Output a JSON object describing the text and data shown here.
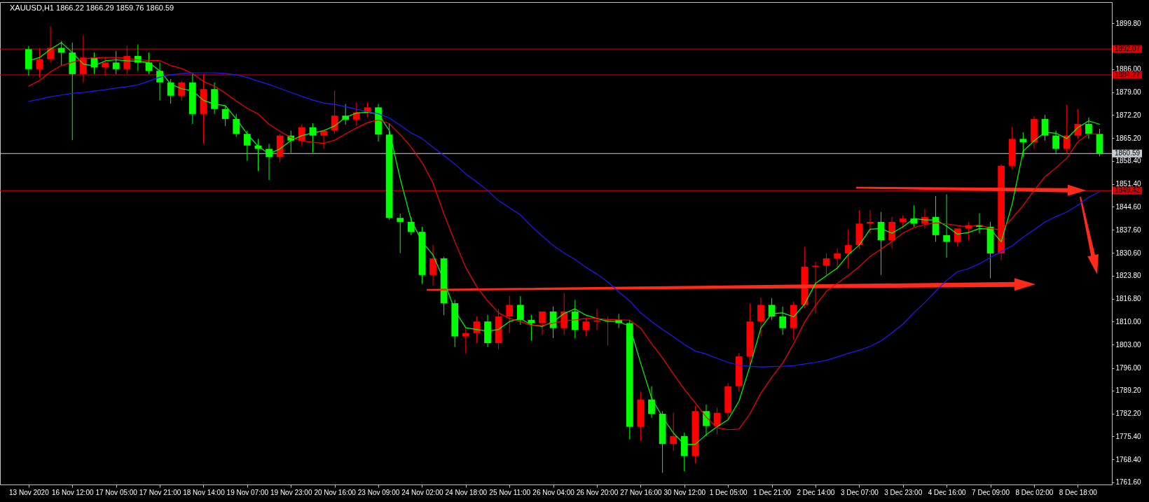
{
  "chart_data": {
    "type": "candlestick",
    "title": "XAUUSD,H1 1866.22 1866.29 1859.76 1860.59",
    "categories": [
      "13 Nov 2020",
      null,
      null,
      null,
      "16 Nov 12:00",
      null,
      null,
      null,
      "17 Nov 05:00",
      null,
      null,
      null,
      "17 Nov 21:00",
      null,
      null,
      null,
      "18 Nov 14:00",
      null,
      null,
      null,
      "19 Nov 07:00",
      null,
      null,
      null,
      "19 Nov 23:00",
      null,
      null,
      null,
      "20 Nov 16:00",
      null,
      null,
      null,
      "23 Nov 09:00",
      null,
      null,
      null,
      "24 Nov 02:00",
      null,
      null,
      null,
      "24 Nov 18:00",
      null,
      null,
      null,
      "25 Nov 11:00",
      null,
      null,
      null,
      "26 Nov 04:00",
      null,
      null,
      null,
      "26 Nov 20:00",
      null,
      null,
      null,
      "27 Nov 16:00",
      null,
      null,
      null,
      "30 Nov 12:00",
      null,
      null,
      null,
      "1 Dec 05:00",
      null,
      null,
      null,
      "1 Dec 21:00",
      null,
      null,
      null,
      "2 Dec 14:00",
      null,
      null,
      null,
      "3 Dec 07:00",
      null,
      null,
      null,
      "3 Dec 23:00",
      null,
      null,
      null,
      "4 Dec 16:00",
      null,
      null,
      null,
      "7 Dec 09:00",
      null,
      null,
      null,
      "8 Dec 02:00",
      null,
      null,
      null,
      "8 Dec 18:00",
      null,
      null
    ],
    "ohlc": [
      [
        1892,
        1893,
        1884,
        1886
      ],
      [
        1886,
        1892.4,
        1883.5,
        1889
      ],
      [
        1889,
        1898.8,
        1888,
        1892.4
      ],
      [
        1892.4,
        1894.5,
        1887,
        1891
      ],
      [
        1891,
        1894,
        1864.6,
        1884.5
      ],
      [
        1884.5,
        1896.2,
        1882,
        1889.5
      ],
      [
        1889.5,
        1891,
        1884.5,
        1886.5
      ],
      [
        1886.5,
        1889.5,
        1884,
        1888
      ],
      [
        1888,
        1891.5,
        1884.5,
        1886
      ],
      [
        1886,
        1893,
        1884.5,
        1890
      ],
      [
        1890,
        1893.5,
        1885.5,
        1888
      ],
      [
        1888,
        1891,
        1884.5,
        1885.5
      ],
      [
        1885.5,
        1888,
        1876.6,
        1882
      ],
      [
        1882,
        1883,
        1875.6,
        1878
      ],
      [
        1878,
        1882.5,
        1876.5,
        1882
      ],
      [
        1882,
        1884.5,
        1869.5,
        1872.5
      ],
      [
        1872.5,
        1884.5,
        1863.6,
        1880
      ],
      [
        1880,
        1882,
        1872.5,
        1874
      ],
      [
        1874,
        1875,
        1868.9,
        1871
      ],
      [
        1871,
        1872.5,
        1865.6,
        1866.5
      ],
      [
        1866.5,
        1867.5,
        1858.4,
        1863
      ],
      [
        1863,
        1865,
        1855.3,
        1862
      ],
      [
        1862,
        1863.5,
        1852.6,
        1859.5
      ],
      [
        1859.5,
        1866.5,
        1858,
        1866
      ],
      [
        1866,
        1867.5,
        1860.8,
        1864.5
      ],
      [
        1864.5,
        1869.4,
        1862.8,
        1868.5
      ],
      [
        1868.5,
        1869.7,
        1860.8,
        1866
      ],
      [
        1866,
        1867.5,
        1862,
        1867.5
      ],
      [
        1867.5,
        1879.5,
        1866.5,
        1872
      ],
      [
        1872,
        1875.5,
        1869.3,
        1870.8
      ],
      [
        1870.8,
        1876,
        1869,
        1873
      ],
      [
        1873,
        1876,
        1871.5,
        1874.5
      ],
      [
        1874.5,
        1875.5,
        1864.2,
        1866.3
      ],
      [
        1866.3,
        1869.5,
        1840.6,
        1841.2
      ],
      [
        1841.2,
        1842.5,
        1830.6,
        1840
      ],
      [
        1840,
        1841.5,
        1836,
        1837
      ],
      [
        1837,
        1838.5,
        1821.3,
        1824
      ],
      [
        1824,
        1833,
        1820.8,
        1829
      ],
      [
        1829,
        1829.5,
        1811.9,
        1815.5
      ],
      [
        1815.5,
        1816.5,
        1802.3,
        1805.5
      ],
      [
        1805.5,
        1808,
        1800.4,
        1806.5
      ],
      [
        1806.5,
        1811.5,
        1803.5,
        1810
      ],
      [
        1810,
        1812,
        1802.3,
        1803.5
      ],
      [
        1803.5,
        1813.8,
        1801.5,
        1811.5
      ],
      [
        1811.5,
        1817.7,
        1806.5,
        1815
      ],
      [
        1815,
        1817.6,
        1809,
        1810.5
      ],
      [
        1810.5,
        1812,
        1804.2,
        1809.5
      ],
      [
        1809.5,
        1813,
        1806,
        1813
      ],
      [
        1813,
        1814.5,
        1805,
        1808
      ],
      [
        1808,
        1818.5,
        1806,
        1813
      ],
      [
        1813,
        1816.5,
        1805,
        1807.5
      ],
      [
        1807.5,
        1811,
        1805.5,
        1810
      ],
      [
        1810,
        1813.8,
        1807.5,
        1810.3
      ],
      [
        1810.3,
        1811.5,
        1802.8,
        1810.5
      ],
      [
        1810.5,
        1812.3,
        1808,
        1809.5
      ],
      [
        1809.5,
        1810.5,
        1774.5,
        1778.3
      ],
      [
        1778.3,
        1788.9,
        1774,
        1786.5
      ],
      [
        1786.5,
        1790.5,
        1781,
        1782.2
      ],
      [
        1782.2,
        1783,
        1764.4,
        1773.1
      ],
      [
        1773.1,
        1782.5,
        1771,
        1775.5
      ],
      [
        1775.5,
        1776.5,
        1764.9,
        1769.5
      ],
      [
        1769.5,
        1784.6,
        1767.2,
        1783
      ],
      [
        1783,
        1785,
        1775.5,
        1778.5
      ],
      [
        1778.5,
        1784,
        1776,
        1782.5
      ],
      [
        1782.5,
        1791.5,
        1780.5,
        1790.5
      ],
      [
        1790.5,
        1800.5,
        1789,
        1799.5
      ],
      [
        1799.5,
        1815.5,
        1797,
        1810
      ],
      [
        1810,
        1817.2,
        1805.5,
        1815
      ],
      [
        1815,
        1817,
        1810.5,
        1811.5
      ],
      [
        1811.5,
        1814.5,
        1806,
        1808
      ],
      [
        1808,
        1816,
        1804.5,
        1815
      ],
      [
        1815,
        1832.5,
        1814,
        1826.5
      ],
      [
        1826.5,
        1828,
        1812.4,
        1826.8
      ],
      [
        1826.8,
        1830.5,
        1824,
        1829
      ],
      [
        1829,
        1832,
        1825.5,
        1830.5
      ],
      [
        1830.5,
        1837.8,
        1826,
        1833
      ],
      [
        1833,
        1843.5,
        1832,
        1839.5
      ],
      [
        1839.5,
        1843.5,
        1836.5,
        1840
      ],
      [
        1840,
        1843,
        1824,
        1834.5
      ],
      [
        1834.5,
        1841.5,
        1832,
        1840
      ],
      [
        1840,
        1842,
        1838,
        1841
      ],
      [
        1841,
        1845,
        1838.5,
        1839.5
      ],
      [
        1839.5,
        1844,
        1838,
        1841.5
      ],
      [
        1841.5,
        1847.8,
        1834,
        1836
      ],
      [
        1836,
        1848.3,
        1829.2,
        1834
      ],
      [
        1834,
        1838,
        1832.5,
        1838
      ],
      [
        1838,
        1840,
        1834.5,
        1839
      ],
      [
        1839,
        1842.6,
        1836.5,
        1838.5
      ],
      [
        1838.5,
        1840,
        1823,
        1830.5
      ],
      [
        1830.5,
        1857.4,
        1828.5,
        1856.9
      ],
      [
        1856.9,
        1868.6,
        1856,
        1865
      ],
      [
        1865,
        1867,
        1859.5,
        1864
      ],
      [
        1864,
        1871.8,
        1862,
        1871
      ],
      [
        1871,
        1872.2,
        1864.5,
        1866
      ],
      [
        1866,
        1867.5,
        1860.5,
        1862
      ],
      [
        1862,
        1875.2,
        1860.5,
        1866
      ],
      [
        1866,
        1874,
        1865,
        1869.5
      ],
      [
        1869.5,
        1871.5,
        1865,
        1866.5
      ],
      [
        1866.5,
        1868,
        1859.76,
        1860.59
      ]
    ],
    "colors": [
      "#00ff00",
      "#ff0000",
      "#ff0000",
      "#00ff00",
      "#00ff00",
      "#ff0000",
      "#00ff00",
      "#ff0000",
      "#00ff00",
      "#ff0000",
      "#00ff00",
      "#00ff00",
      "#00ff00",
      "#00ff00",
      "#ff0000",
      "#00ff00",
      "#ff0000",
      "#00ff00",
      "#00ff00",
      "#00ff00",
      "#00ff00",
      "#00ff00",
      "#00ff00",
      "#ff0000",
      "#00ff00",
      "#ff0000",
      "#00ff00",
      "#ff0000",
      "#ff0000",
      "#00ff00",
      "#ff0000",
      "#ff0000",
      "#00ff00",
      "#00ff00",
      "#00ff00",
      "#00ff00",
      "#00ff00",
      "#ff0000",
      "#00ff00",
      "#00ff00",
      "#ff0000",
      "#ff0000",
      "#00ff00",
      "#ff0000",
      "#ff0000",
      "#00ff00",
      "#00ff00",
      "#ff0000",
      "#00ff00",
      "#ff0000",
      "#00ff00",
      "#ff0000",
      "#ff0000",
      "#ff0000",
      "#00ff00",
      "#00ff00",
      "#ff0000",
      "#00ff00",
      "#00ff00",
      "#ff0000",
      "#00ff00",
      "#ff0000",
      "#00ff00",
      "#ff0000",
      "#ff0000",
      "#ff0000",
      "#ff0000",
      "#ff0000",
      "#00ff00",
      "#00ff00",
      "#ff0000",
      "#ff0000",
      "#ff0000",
      "#ff0000",
      "#ff0000",
      "#ff0000",
      "#ff0000",
      "#ff0000",
      "#00ff00",
      "#ff0000",
      "#ff0000",
      "#00ff00",
      "#ff0000",
      "#00ff00",
      "#00ff00",
      "#ff0000",
      "#ff0000",
      "#00ff00",
      "#00ff00",
      "#ff0000",
      "#ff0000",
      "#00ff00",
      "#ff0000",
      "#00ff00",
      "#00ff00",
      "#ff0000",
      "#ff0000",
      "#00ff00",
      "#00ff00"
    ],
    "series": [
      {
        "type": "line",
        "color": "#00ff00",
        "values": [
          1888.5,
          1889.5,
          1892,
          1894,
          1891,
          1887.5,
          1887,
          1888.5,
          1888.8,
          1888.5,
          1888.4,
          1888,
          1885.5,
          1881.5,
          1880.1,
          1879.5,
          1876.6,
          1875.5,
          1875,
          1871,
          1866.5,
          1862.8,
          1860.5,
          1862,
          1864.5,
          1866,
          1866.8,
          1867.5,
          1868.9,
          1871.5,
          1872.8,
          1873,
          1872.5,
          1867.5,
          1853,
          1840.6,
          1834,
          1830.1,
          1822.4,
          1813.3,
          1808.1,
          1807.6,
          1807.1,
          1807.6,
          1810,
          1810.9,
          1809,
          1808.5,
          1810,
          1812.4,
          1813.8,
          1811.9,
          1810.9,
          1810,
          1810,
          1808.5,
          1797.5,
          1787,
          1781.2,
          1776.4,
          1773,
          1773,
          1775.9,
          1778.3,
          1780.4,
          1786,
          1796.5,
          1808,
          1812.4,
          1812.6,
          1811.4,
          1815.2,
          1821.5,
          1823.8,
          1826.1,
          1830.1,
          1833,
          1837.8,
          1838,
          1836.6,
          1838.5,
          1841,
          1840.6,
          1840.6,
          1838.7,
          1836.3,
          1836.8,
          1838,
          1837.8,
          1834,
          1845.4,
          1861.3,
          1864.4,
          1867,
          1866.7,
          1865.1,
          1868.4,
          1870.4,
          1869.4
        ]
      },
      {
        "type": "line",
        "color": "#ff0000",
        "values": [
          1880.9,
          1882.6,
          1885.2,
          1887.1,
          1888.1,
          1889.1,
          1889.4,
          1889.5,
          1889.5,
          1889.3,
          1888.8,
          1888.6,
          1888.6,
          1887.1,
          1886.2,
          1884.7,
          1882.3,
          1880.9,
          1878.8,
          1876.4,
          1874.2,
          1872.5,
          1869.4,
          1867.3,
          1865.4,
          1864.4,
          1864,
          1863.7,
          1864.6,
          1866.5,
          1868.3,
          1869.9,
          1870.7,
          1869.6,
          1866.3,
          1862.5,
          1857.9,
          1851.7,
          1842.4,
          1834,
          1826.3,
          1820.5,
          1816.2,
          1812.6,
          1810.9,
          1810,
          1808.8,
          1808.8,
          1809.5,
          1810.2,
          1810.5,
          1810.9,
          1810.9,
          1810.6,
          1810.5,
          1810.4,
          1808,
          1803.3,
          1799,
          1794.2,
          1789.6,
          1785.5,
          1781.2,
          1778,
          1777.4,
          1777.6,
          1782.2,
          1788.4,
          1793.2,
          1797.5,
          1803.3,
          1809.8,
          1814.8,
          1819.1,
          1821.5,
          1823.9,
          1826.5,
          1829.6,
          1831.8,
          1834.1,
          1836.6,
          1838.3,
          1839.2,
          1839.7,
          1839.4,
          1838.9,
          1838.5,
          1839.1,
          1838,
          1837.6,
          1841.1,
          1844.9,
          1849.5,
          1853.6,
          1856.3,
          1859.2,
          1864.1,
          1866.5,
          1866.5
        ]
      },
      {
        "type": "line",
        "color": "#1c1cff",
        "values": [
          1876.3,
          1876.9,
          1877.7,
          1878.2,
          1878.7,
          1879,
          1879.4,
          1879.8,
          1880.3,
          1880.7,
          1881.3,
          1882.4,
          1883.6,
          1884.3,
          1884.7,
          1884.9,
          1884.9,
          1884.9,
          1884.7,
          1884.3,
          1883.5,
          1882.4,
          1881.4,
          1880.2,
          1879,
          1877.8,
          1876.7,
          1875.8,
          1875.4,
          1874.7,
          1873.9,
          1873.2,
          1872.6,
          1871.3,
          1869.1,
          1866.8,
          1865.1,
          1862.5,
          1860,
          1857.4,
          1854.5,
          1852,
          1849.5,
          1846.4,
          1844.3,
          1842.1,
          1838.7,
          1835.7,
          1832.9,
          1830.6,
          1828.7,
          1826.3,
          1824.3,
          1821.9,
          1818.9,
          1816.2,
          1812.6,
          1810,
          1807.6,
          1805.4,
          1803.1,
          1801.1,
          1800.2,
          1798.9,
          1797.7,
          1796.8,
          1796.5,
          1796.3,
          1796.4,
          1796.5,
          1796.7,
          1797.2,
          1797.7,
          1798.3,
          1799.3,
          1800.4,
          1801.3,
          1802.5,
          1804.2,
          1806.6,
          1809.2,
          1812.6,
          1815.7,
          1819.1,
          1822.4,
          1825,
          1825.9,
          1827.4,
          1829.3,
          1831.1,
          1832.8,
          1835.4,
          1837.6,
          1840,
          1841.6,
          1843,
          1845,
          1847.4,
          1849.1
        ]
      }
    ],
    "ylim": [
      1760.9,
      1906.2
    ],
    "yticks": [
      {
        "value": 1899.8,
        "label": "1899.80"
      },
      {
        "value": 1886,
        "label": "1886.00"
      },
      {
        "value": 1879,
        "label": "1879.00"
      },
      {
        "value": 1872.2,
        "label": "1872.20"
      },
      {
        "value": 1865.2,
        "label": "1865.20"
      },
      {
        "value": 1858.4,
        "label": "1858.40"
      },
      {
        "value": 1851.4,
        "label": "1851.40"
      },
      {
        "value": 1844.6,
        "label": "1844.60"
      },
      {
        "value": 1837.6,
        "label": "1837.60"
      },
      {
        "value": 1830.6,
        "label": "1830.60"
      },
      {
        "value": 1823.8,
        "label": "1823.80"
      },
      {
        "value": 1816.8,
        "label": "1816.80"
      },
      {
        "value": 1810,
        "label": "1810.00"
      },
      {
        "value": 1803,
        "label": "1803.00"
      },
      {
        "value": 1796,
        "label": "1796.00"
      },
      {
        "value": 1789.2,
        "label": "1789.20"
      },
      {
        "value": 1782.2,
        "label": "1782.20"
      },
      {
        "value": 1775.4,
        "label": "1775.40"
      },
      {
        "value": 1768.4,
        "label": "1768.40"
      },
      {
        "value": 1761.6,
        "label": "1761.60"
      }
    ],
    "ref_lines": [
      {
        "axis": "y",
        "value": 1892.07,
        "label": "1892.07",
        "color": "#e00000"
      },
      {
        "axis": "y",
        "value": 1884.27,
        "label": "1884.27",
        "color": "#e00000"
      },
      {
        "axis": "y",
        "value": 1860.59,
        "label": "1860.59",
        "color": "#c8cdd2"
      },
      {
        "axis": "y",
        "value": 1849.42,
        "label": "1849.42",
        "color": "#e00000"
      }
    ]
  }
}
